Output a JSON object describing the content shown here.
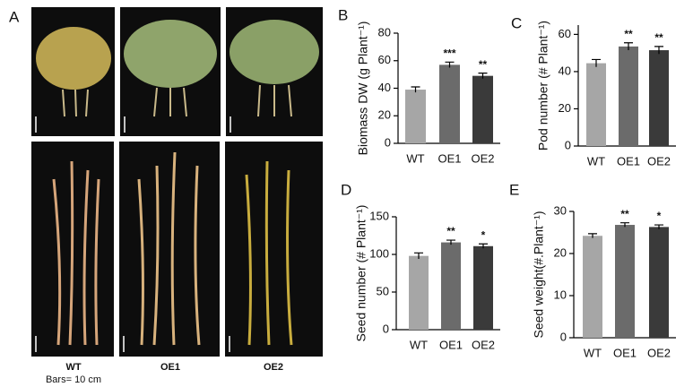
{
  "photo_panel": {
    "label": "A",
    "captions": [
      "WT",
      "OE1",
      "OE2"
    ],
    "scale_note": "Bars= 10 cm"
  },
  "chart_data": [
    {
      "type": "bar",
      "panel_label": "B",
      "ylabel": "Biomass DW (g Plant⁻¹)",
      "categories": [
        "WT",
        "OE1",
        "OE2"
      ],
      "values": [
        39,
        57,
        49
      ],
      "errors": [
        2,
        2,
        2
      ],
      "value_annotations": [
        null,
        "***",
        "**"
      ],
      "colors": [
        "#a6a6a6",
        "#6b6b6b",
        "#3a3a3a"
      ],
      "ylim": [
        0,
        80
      ],
      "yticks": [
        0,
        20,
        40,
        60,
        80
      ]
    },
    {
      "type": "bar",
      "panel_label": "C",
      "ylabel": "Pod number (# Plant⁻¹)",
      "categories": [
        "WT",
        "OE1",
        "OE2"
      ],
      "values": [
        44.5,
        53.5,
        51.5
      ],
      "errors": [
        2,
        2,
        2
      ],
      "value_annotations": [
        null,
        "**",
        "**"
      ],
      "colors": [
        "#a6a6a6",
        "#6b6b6b",
        "#3a3a3a"
      ],
      "ylim": [
        0,
        65
      ],
      "yticks": [
        0,
        20,
        40,
        60
      ]
    },
    {
      "type": "bar",
      "panel_label": "D",
      "ylabel": "Seed number (# Plant⁻¹)",
      "categories": [
        "WT",
        "OE1",
        "OE2"
      ],
      "values": [
        98,
        116,
        111
      ],
      "errors": [
        4,
        3,
        3
      ],
      "value_annotations": [
        null,
        "**",
        "*"
      ],
      "colors": [
        "#a6a6a6",
        "#6b6b6b",
        "#3a3a3a"
      ],
      "ylim": [
        0,
        150
      ],
      "yticks": [
        0,
        50,
        100,
        150
      ]
    },
    {
      "type": "bar",
      "panel_label": "E",
      "ylabel": "Seed weight(#.Plant⁻¹)",
      "categories": [
        "WT",
        "OE1",
        "OE2"
      ],
      "values": [
        24.2,
        26.8,
        26.3
      ],
      "errors": [
        0.5,
        0.5,
        0.5
      ],
      "value_annotations": [
        null,
        "**",
        "*"
      ],
      "colors": [
        "#a6a6a6",
        "#6b6b6b",
        "#3a3a3a"
      ],
      "ylim": [
        0,
        30
      ],
      "yticks": [
        0,
        10,
        20,
        30
      ]
    }
  ]
}
